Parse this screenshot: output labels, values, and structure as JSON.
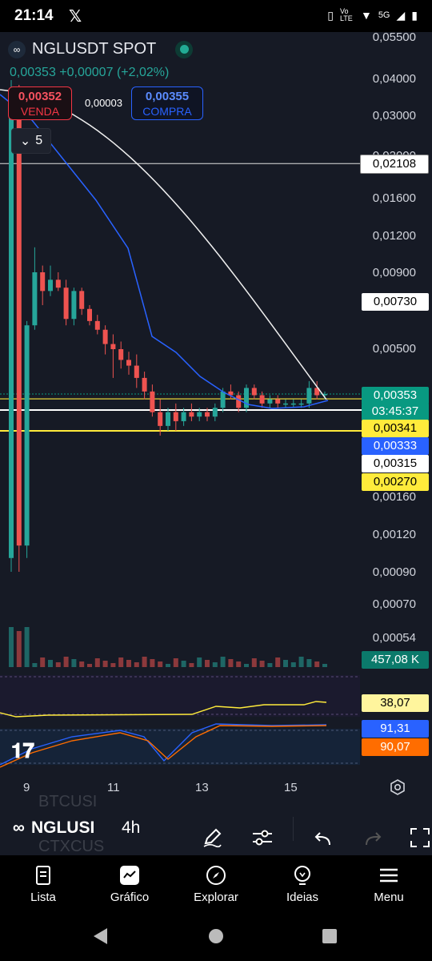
{
  "status_bar": {
    "time": "21:14",
    "app_icon": "x-logo-icon",
    "network": "5G",
    "volte": "Vo LTE"
  },
  "symbol": {
    "name": "NGLUSDT SPOT",
    "logo_glyph": "∞",
    "market_status_color": "#22ab94"
  },
  "quote": {
    "price": "0,00353",
    "change": "+0,00007",
    "change_pct": "(+2,02%)",
    "color": "#26a69a"
  },
  "order": {
    "sell_price": "0,00352",
    "sell_label": "VENDA",
    "spread": "0,00003",
    "buy_price": "0,00355",
    "buy_label": "COMPRA"
  },
  "indicator_toggle": {
    "count": "5"
  },
  "price_axis": [
    "0,05500",
    "0,04000",
    "0,03000",
    "0,02000",
    "0,01600",
    "0,01200",
    "0,00900",
    "0,00500",
    "0,00160",
    "0,00120",
    "0,00090",
    "0,00070",
    "0,00054"
  ],
  "axis_pills": {
    "hline_1": "0,02108",
    "ma_slow": "0,00730",
    "last_price": "0,00353",
    "countdown": "03:45:37",
    "yellow_1": "0,00341",
    "ma_fast": "0,00333",
    "white_line": "0,00315",
    "yellow_2": "0,00270",
    "volume": "457,08 K",
    "osc_1": "38,07",
    "stoch_k": "91,31",
    "stoch_d": "90,07"
  },
  "time_axis": [
    "9",
    "11",
    "13",
    "15"
  ],
  "toolbar": {
    "symbol_short": "NGLUSI",
    "interval": "4h",
    "ghost_top": "BTCUSI",
    "ghost_bottom": "CTXCUS"
  },
  "bottom_nav": [
    {
      "label": "Lista",
      "icon": "list-icon"
    },
    {
      "label": "Gráfico",
      "icon": "chart-icon"
    },
    {
      "label": "Explorar",
      "icon": "compass-icon"
    },
    {
      "label": "Ideias",
      "icon": "lightbulb-icon"
    },
    {
      "label": "Menu",
      "icon": "hamburger-icon"
    }
  ],
  "chart_data": {
    "type": "candlestick",
    "x_ticks": [
      "9",
      "11",
      "13",
      "15"
    ],
    "y_ticks": [
      "0,05500",
      "0,04000",
      "0,03000",
      "0,02000",
      "0,01600",
      "0,01200",
      "0,00900",
      "0,00500",
      "0,00160",
      "0,00120",
      "0,00090",
      "0,00070",
      "0,00054"
    ],
    "scale": "log",
    "last_price": 0.00353,
    "horizontal_lines": [
      0.02108,
      0.00341,
      0.00315,
      0.0027
    ],
    "candles": [
      {
        "o": 0.001,
        "h": 0.035,
        "l": 0.0009,
        "c": 0.032
      },
      {
        "o": 0.032,
        "h": 0.034,
        "l": 0.0009,
        "c": 0.0011
      },
      {
        "o": 0.0011,
        "h": 0.0062,
        "l": 0.001,
        "c": 0.006
      },
      {
        "o": 0.006,
        "h": 0.011,
        "l": 0.0058,
        "c": 0.009
      },
      {
        "o": 0.009,
        "h": 0.0095,
        "l": 0.007,
        "c": 0.0078
      },
      {
        "o": 0.0078,
        "h": 0.0095,
        "l": 0.0075,
        "c": 0.0085
      },
      {
        "o": 0.0085,
        "h": 0.009,
        "l": 0.0078,
        "c": 0.008
      },
      {
        "o": 0.008,
        "h": 0.0085,
        "l": 0.006,
        "c": 0.0063
      },
      {
        "o": 0.0063,
        "h": 0.008,
        "l": 0.006,
        "c": 0.0078
      },
      {
        "o": 0.0078,
        "h": 0.008,
        "l": 0.0065,
        "c": 0.0068
      },
      {
        "o": 0.0068,
        "h": 0.007,
        "l": 0.006,
        "c": 0.0062
      },
      {
        "o": 0.0062,
        "h": 0.0065,
        "l": 0.0056,
        "c": 0.0058
      },
      {
        "o": 0.0058,
        "h": 0.006,
        "l": 0.0048,
        "c": 0.0052
      },
      {
        "o": 0.0052,
        "h": 0.0056,
        "l": 0.004,
        "c": 0.005
      },
      {
        "o": 0.005,
        "h": 0.0053,
        "l": 0.0043,
        "c": 0.0046
      },
      {
        "o": 0.0046,
        "h": 0.0049,
        "l": 0.0041,
        "c": 0.0044
      },
      {
        "o": 0.0044,
        "h": 0.0048,
        "l": 0.0037,
        "c": 0.004
      },
      {
        "o": 0.004,
        "h": 0.0042,
        "l": 0.0034,
        "c": 0.0036
      },
      {
        "o": 0.0036,
        "h": 0.0038,
        "l": 0.003,
        "c": 0.0031
      },
      {
        "o": 0.0031,
        "h": 0.0034,
        "l": 0.0026,
        "c": 0.0028
      },
      {
        "o": 0.0028,
        "h": 0.0032,
        "l": 0.0027,
        "c": 0.0031
      },
      {
        "o": 0.0031,
        "h": 0.0033,
        "l": 0.0027,
        "c": 0.0029
      },
      {
        "o": 0.0029,
        "h": 0.0032,
        "l": 0.0028,
        "c": 0.0031
      },
      {
        "o": 0.0031,
        "h": 0.0033,
        "l": 0.0029,
        "c": 0.003
      },
      {
        "o": 0.003,
        "h": 0.0032,
        "l": 0.0029,
        "c": 0.0031
      },
      {
        "o": 0.0031,
        "h": 0.0032,
        "l": 0.0029,
        "c": 0.003
      },
      {
        "o": 0.003,
        "h": 0.0033,
        "l": 0.0029,
        "c": 0.0032
      },
      {
        "o": 0.0032,
        "h": 0.0037,
        "l": 0.0031,
        "c": 0.0036
      },
      {
        "o": 0.0036,
        "h": 0.0038,
        "l": 0.0034,
        "c": 0.0035
      },
      {
        "o": 0.0035,
        "h": 0.0036,
        "l": 0.0031,
        "c": 0.0032
      },
      {
        "o": 0.0032,
        "h": 0.0038,
        "l": 0.0031,
        "c": 0.0037
      },
      {
        "o": 0.0037,
        "h": 0.0038,
        "l": 0.0034,
        "c": 0.0035
      },
      {
        "o": 0.0035,
        "h": 0.0036,
        "l": 0.0032,
        "c": 0.0033
      },
      {
        "o": 0.0033,
        "h": 0.0035,
        "l": 0.0032,
        "c": 0.0034
      },
      {
        "o": 0.0034,
        "h": 0.0035,
        "l": 0.0032,
        "c": 0.0033
      },
      {
        "o": 0.0033,
        "h": 0.0034,
        "l": 0.0032,
        "c": 0.0033
      },
      {
        "o": 0.0033,
        "h": 0.0034,
        "l": 0.0032,
        "c": 0.0033
      },
      {
        "o": 0.0033,
        "h": 0.0034,
        "l": 0.0032,
        "c": 0.0033
      },
      {
        "o": 0.0033,
        "h": 0.0039,
        "l": 0.0032,
        "c": 0.0037
      },
      {
        "o": 0.0037,
        "h": 0.0039,
        "l": 0.0034,
        "c": 0.0035
      },
      {
        "o": 0.0035,
        "h": 0.0036,
        "l": 0.0034,
        "c": 0.00353
      }
    ]
  }
}
